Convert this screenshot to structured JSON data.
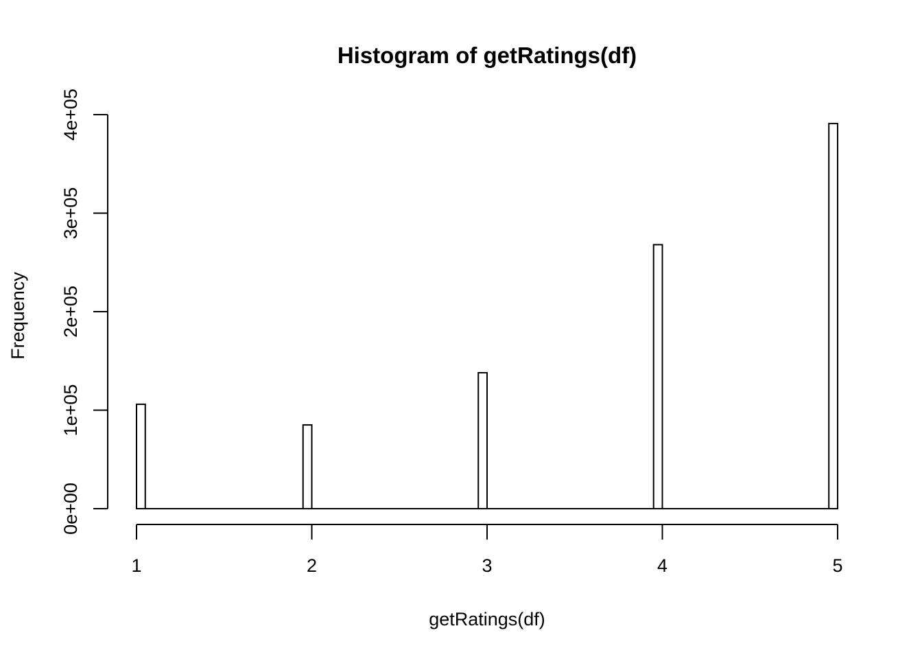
{
  "chart_data": {
    "type": "bar",
    "title": "Histogram of getRatings(df)",
    "xlabel": "getRatings(df)",
    "ylabel": "Frequency",
    "x_ticks": [
      "1",
      "2",
      "3",
      "4",
      "5"
    ],
    "y_ticks": [
      "0e+00",
      "1e+05",
      "2e+05",
      "3e+05",
      "4e+05"
    ],
    "xlim": [
      1,
      5
    ],
    "ylim": [
      0,
      400000
    ],
    "bin_width": 0.05,
    "grid": false,
    "bins": [
      {
        "start": 1.0,
        "end": 1.05,
        "value": 106000
      },
      {
        "start": 1.95,
        "end": 2.0,
        "value": 85000
      },
      {
        "start": 2.95,
        "end": 3.0,
        "value": 138000
      },
      {
        "start": 3.95,
        "end": 4.0,
        "value": 268000
      },
      {
        "start": 4.95,
        "end": 5.0,
        "value": 391000
      }
    ],
    "bar_color": "#ffffff",
    "stroke_color": "#000000"
  }
}
